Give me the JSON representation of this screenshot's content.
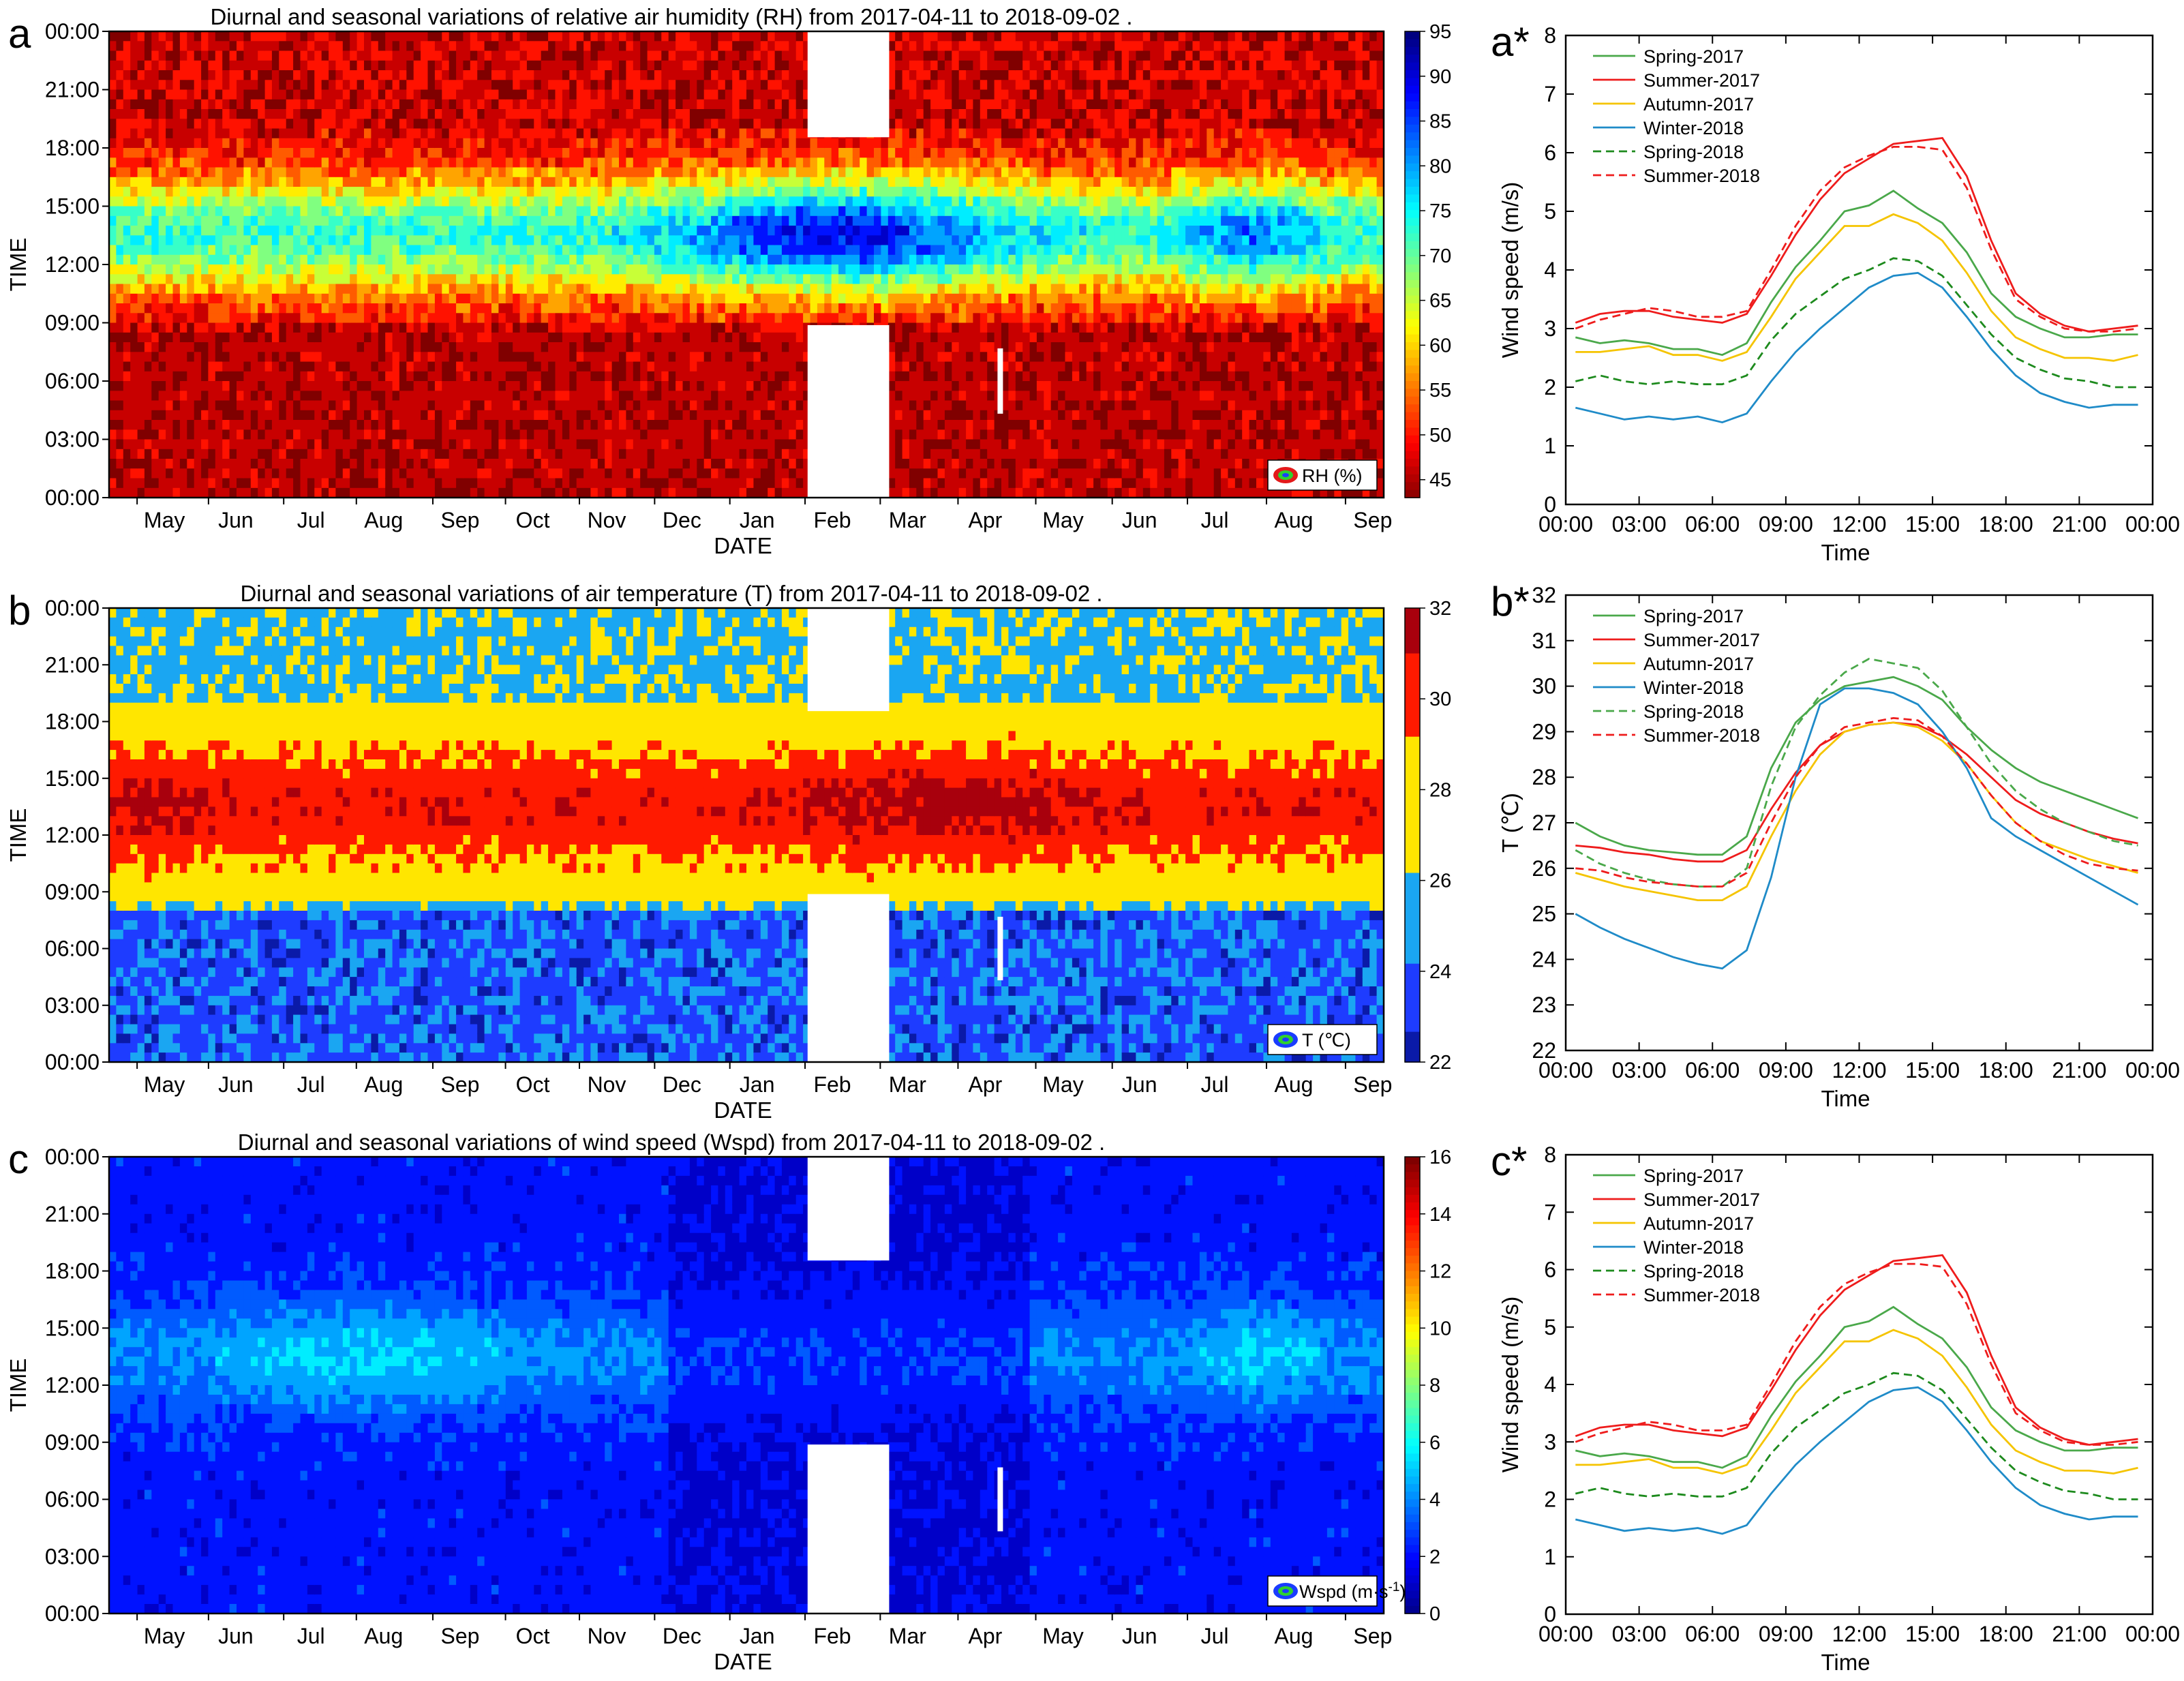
{
  "chart_data": [
    {
      "id": "a",
      "type": "heatmap",
      "panel_label": "a",
      "title": "Diurnal and seasonal variations of relative air humidity (RH) from 2017-04-11 to 2018-09-02 .",
      "xlabel": "DATE",
      "ylabel": "TIME",
      "x_ticks": [
        "May",
        "Jun",
        "Jul",
        "Aug",
        "Sep",
        "Oct",
        "Nov",
        "Dec",
        "Jan",
        "Feb",
        "Mar",
        "Apr",
        "May",
        "Jun",
        "Jul",
        "Aug",
        "Sep"
      ],
      "y_ticks": [
        "00:00",
        "03:00",
        "06:00",
        "09:00",
        "12:00",
        "15:00",
        "18:00",
        "21:00",
        "00:00"
      ],
      "colorbar": {
        "min": 43,
        "max": 95,
        "ticks": [
          45,
          50,
          55,
          60,
          65,
          70,
          75,
          80,
          85,
          90,
          95
        ],
        "scheme": "jet_reversed"
      },
      "legend": "RH (%)",
      "colors": [
        "#7f0000",
        "#ff0000",
        "#ff8c00",
        "#ffff00",
        "#7fff7f",
        "#00e5ee",
        "#00a2e8",
        "#0040ff",
        "#00008f"
      ]
    },
    {
      "id": "b",
      "type": "heatmap",
      "panel_label": "b",
      "title": "Diurnal and seasonal variations of air temperature (T) from 2017-04-11 to 2018-09-02 .",
      "xlabel": "DATE",
      "ylabel": "TIME",
      "x_ticks": [
        "May",
        "Jun",
        "Jul",
        "Aug",
        "Sep",
        "Oct",
        "Nov",
        "Dec",
        "Jan",
        "Feb",
        "Mar",
        "Apr",
        "May",
        "Jun",
        "Jul",
        "Aug",
        "Sep"
      ],
      "y_ticks": [
        "00:00",
        "03:00",
        "06:00",
        "09:00",
        "12:00",
        "15:00",
        "18:00",
        "21:00",
        "00:00"
      ],
      "colorbar": {
        "min": 22,
        "max": 32,
        "ticks": [
          22,
          24,
          26,
          28,
          30,
          32
        ],
        "scheme": "jet"
      },
      "legend": "T (℃)"
    },
    {
      "id": "c",
      "type": "heatmap",
      "panel_label": "c",
      "title": "Diurnal and seasonal variations of wind speed (Wspd) from 2017-04-11 to 2018-09-02 .",
      "xlabel": "DATE",
      "ylabel": "TIME",
      "x_ticks": [
        "May",
        "Jun",
        "Jul",
        "Aug",
        "Sep",
        "Oct",
        "Nov",
        "Dec",
        "Jan",
        "Feb",
        "Mar",
        "Apr",
        "May",
        "Jun",
        "Jul",
        "Aug",
        "Sep"
      ],
      "y_ticks": [
        "00:00",
        "03:00",
        "06:00",
        "09:00",
        "12:00",
        "15:00",
        "18:00",
        "21:00",
        "00:00"
      ],
      "colorbar": {
        "min": 0,
        "max": 16,
        "ticks": [
          0,
          2,
          4,
          6,
          8,
          10,
          12,
          14,
          16
        ],
        "scheme": "jet"
      },
      "legend": "Wspd (m·s-1)",
      "legend_main": "Wspd (m·s",
      "legend_sup": "-1",
      "legend_close": ")"
    },
    {
      "id": "a2",
      "type": "line",
      "panel_label": "a*",
      "xlabel": "Time",
      "ylabel": "Wind speed (m/s)",
      "ylim": [
        0,
        8
      ],
      "y_ticks": [
        0,
        1,
        2,
        3,
        4,
        5,
        6,
        7,
        8
      ],
      "x_ticks": [
        "00:00",
        "03:00",
        "06:00",
        "09:00",
        "12:00",
        "15:00",
        "18:00",
        "21:00",
        "00:00"
      ],
      "x": [
        0,
        1,
        2,
        3,
        4,
        5,
        6,
        7,
        8,
        9,
        10,
        11,
        12,
        13,
        14,
        15,
        16,
        17,
        18,
        19,
        20,
        21,
        22,
        23
      ],
      "series": [
        {
          "name": "Spring-2017",
          "color": "#4aa84a",
          "dash": false,
          "values": [
            2.85,
            2.75,
            2.8,
            2.75,
            2.65,
            2.65,
            2.55,
            2.75,
            3.45,
            4.05,
            4.5,
            5.0,
            5.1,
            5.35,
            5.05,
            4.8,
            4.3,
            3.6,
            3.2,
            3.0,
            2.85,
            2.85,
            2.9,
            2.9
          ]
        },
        {
          "name": "Summer-2017",
          "color": "#ee1c1c",
          "dash": false,
          "values": [
            3.1,
            3.25,
            3.3,
            3.3,
            3.2,
            3.15,
            3.1,
            3.25,
            3.9,
            4.6,
            5.2,
            5.65,
            5.9,
            6.15,
            6.2,
            6.25,
            5.6,
            4.5,
            3.6,
            3.25,
            3.05,
            2.95,
            3.0,
            3.05
          ]
        },
        {
          "name": "Autumn-2017",
          "color": "#f5c400",
          "dash": false,
          "values": [
            2.6,
            2.6,
            2.65,
            2.7,
            2.55,
            2.55,
            2.45,
            2.6,
            3.2,
            3.85,
            4.3,
            4.75,
            4.75,
            4.95,
            4.8,
            4.5,
            3.95,
            3.3,
            2.85,
            2.65,
            2.5,
            2.5,
            2.45,
            2.55
          ]
        },
        {
          "name": "Winter-2018",
          "color": "#1f8bc8",
          "dash": false,
          "values": [
            1.65,
            1.55,
            1.45,
            1.5,
            1.45,
            1.5,
            1.4,
            1.55,
            2.1,
            2.6,
            3.0,
            3.35,
            3.7,
            3.9,
            3.95,
            3.7,
            3.2,
            2.65,
            2.2,
            1.9,
            1.75,
            1.65,
            1.7,
            1.7
          ]
        },
        {
          "name": "Spring-2018",
          "color": "#1d8a1d",
          "dash": true,
          "values": [
            2.1,
            2.2,
            2.1,
            2.05,
            2.1,
            2.05,
            2.05,
            2.2,
            2.8,
            3.25,
            3.55,
            3.85,
            4.0,
            4.2,
            4.15,
            3.9,
            3.4,
            2.9,
            2.5,
            2.3,
            2.15,
            2.1,
            2.0,
            2.0
          ]
        },
        {
          "name": "Summer-2018",
          "color": "#ee1c1c",
          "dash": true,
          "values": [
            3.0,
            3.15,
            3.25,
            3.35,
            3.3,
            3.2,
            3.2,
            3.3,
            4.0,
            4.75,
            5.35,
            5.75,
            5.95,
            6.1,
            6.1,
            6.05,
            5.4,
            4.35,
            3.5,
            3.2,
            3.0,
            2.95,
            2.95,
            3.0
          ]
        }
      ]
    },
    {
      "id": "b2",
      "type": "line",
      "panel_label": "b*",
      "xlabel": "Time",
      "ylabel": "T (℃)",
      "ylim": [
        22,
        32
      ],
      "y_ticks": [
        22,
        23,
        24,
        25,
        26,
        27,
        28,
        29,
        30,
        31,
        32
      ],
      "x_ticks": [
        "00:00",
        "03:00",
        "06:00",
        "09:00",
        "12:00",
        "15:00",
        "18:00",
        "21:00",
        "00:00"
      ],
      "x": [
        0,
        1,
        2,
        3,
        4,
        5,
        6,
        7,
        8,
        9,
        10,
        11,
        12,
        13,
        14,
        15,
        16,
        17,
        18,
        19,
        20,
        21,
        22,
        23
      ],
      "series": [
        {
          "name": "Spring-2017",
          "color": "#4aa84a",
          "dash": false,
          "values": [
            27.0,
            26.7,
            26.5,
            26.4,
            26.35,
            26.3,
            26.3,
            26.7,
            28.2,
            29.2,
            29.7,
            30.0,
            30.1,
            30.2,
            30.0,
            29.7,
            29.1,
            28.6,
            28.2,
            27.9,
            27.7,
            27.5,
            27.3,
            27.1
          ]
        },
        {
          "name": "Summer-2017",
          "color": "#ee1c1c",
          "dash": false,
          "values": [
            26.5,
            26.45,
            26.35,
            26.3,
            26.2,
            26.15,
            26.15,
            26.4,
            27.3,
            28.1,
            28.7,
            29.0,
            29.15,
            29.2,
            29.15,
            28.9,
            28.5,
            28.0,
            27.5,
            27.2,
            27.0,
            26.8,
            26.65,
            26.55
          ]
        },
        {
          "name": "Autumn-2017",
          "color": "#f5c400",
          "dash": false,
          "values": [
            25.9,
            25.75,
            25.6,
            25.5,
            25.4,
            25.3,
            25.3,
            25.6,
            26.7,
            27.7,
            28.5,
            29.0,
            29.15,
            29.2,
            29.1,
            28.8,
            28.3,
            27.6,
            27.0,
            26.6,
            26.4,
            26.2,
            26.05,
            25.9
          ]
        },
        {
          "name": "Winter-2018",
          "color": "#1f8bc8",
          "dash": false,
          "values": [
            25.0,
            24.7,
            24.45,
            24.25,
            24.05,
            23.9,
            23.8,
            24.2,
            25.8,
            28.0,
            29.6,
            29.95,
            29.95,
            29.85,
            29.6,
            29.0,
            28.2,
            27.1,
            26.7,
            26.4,
            26.1,
            25.8,
            25.5,
            25.2
          ]
        },
        {
          "name": "Spring-2018",
          "color": "#4aa84a",
          "dash": true,
          "values": [
            26.4,
            26.1,
            25.9,
            25.75,
            25.65,
            25.6,
            25.6,
            26.0,
            27.8,
            29.1,
            29.8,
            30.3,
            30.6,
            30.5,
            30.4,
            29.9,
            29.1,
            28.3,
            27.7,
            27.3,
            27.0,
            26.8,
            26.6,
            26.5
          ]
        },
        {
          "name": "Summer-2018",
          "color": "#ee1c1c",
          "dash": true,
          "values": [
            26.0,
            25.95,
            25.8,
            25.7,
            25.65,
            25.6,
            25.6,
            25.9,
            27.0,
            28.0,
            28.7,
            29.1,
            29.2,
            29.3,
            29.25,
            28.9,
            28.3,
            27.6,
            27.0,
            26.6,
            26.3,
            26.1,
            26.0,
            25.95
          ]
        }
      ]
    },
    {
      "id": "c2",
      "type": "line",
      "panel_label": "c*",
      "xlabel": "Time",
      "ylabel": "Wind speed (m/s)",
      "ylim": [
        0,
        8
      ],
      "y_ticks": [
        0,
        1,
        2,
        3,
        4,
        5,
        6,
        7,
        8
      ],
      "x_ticks": [
        "00:00",
        "03:00",
        "06:00",
        "09:00",
        "12:00",
        "15:00",
        "18:00",
        "21:00",
        "00:00"
      ],
      "x": [
        0,
        1,
        2,
        3,
        4,
        5,
        6,
        7,
        8,
        9,
        10,
        11,
        12,
        13,
        14,
        15,
        16,
        17,
        18,
        19,
        20,
        21,
        22,
        23
      ],
      "series": [
        {
          "name": "Spring-2017",
          "color": "#4aa84a",
          "dash": false,
          "values": [
            2.85,
            2.75,
            2.8,
            2.75,
            2.65,
            2.65,
            2.55,
            2.75,
            3.45,
            4.05,
            4.5,
            5.0,
            5.1,
            5.35,
            5.05,
            4.8,
            4.3,
            3.6,
            3.2,
            3.0,
            2.85,
            2.85,
            2.9,
            2.9
          ]
        },
        {
          "name": "Summer-2017",
          "color": "#ee1c1c",
          "dash": false,
          "values": [
            3.1,
            3.25,
            3.3,
            3.3,
            3.2,
            3.15,
            3.1,
            3.25,
            3.9,
            4.6,
            5.2,
            5.65,
            5.9,
            6.15,
            6.2,
            6.25,
            5.6,
            4.5,
            3.6,
            3.25,
            3.05,
            2.95,
            3.0,
            3.05
          ]
        },
        {
          "name": "Autumn-2017",
          "color": "#f5c400",
          "dash": false,
          "values": [
            2.6,
            2.6,
            2.65,
            2.7,
            2.55,
            2.55,
            2.45,
            2.6,
            3.2,
            3.85,
            4.3,
            4.75,
            4.75,
            4.95,
            4.8,
            4.5,
            3.95,
            3.3,
            2.85,
            2.65,
            2.5,
            2.5,
            2.45,
            2.55
          ]
        },
        {
          "name": "Winter-2018",
          "color": "#1f8bc8",
          "dash": false,
          "values": [
            1.65,
            1.55,
            1.45,
            1.5,
            1.45,
            1.5,
            1.4,
            1.55,
            2.1,
            2.6,
            3.0,
            3.35,
            3.7,
            3.9,
            3.95,
            3.7,
            3.2,
            2.65,
            2.2,
            1.9,
            1.75,
            1.65,
            1.7,
            1.7
          ]
        },
        {
          "name": "Spring-2018",
          "color": "#1d8a1d",
          "dash": true,
          "values": [
            2.1,
            2.2,
            2.1,
            2.05,
            2.1,
            2.05,
            2.05,
            2.2,
            2.8,
            3.25,
            3.55,
            3.85,
            4.0,
            4.2,
            4.15,
            3.9,
            3.4,
            2.9,
            2.5,
            2.3,
            2.15,
            2.1,
            2.0,
            2.0
          ]
        },
        {
          "name": "Summer-2018",
          "color": "#ee1c1c",
          "dash": true,
          "values": [
            3.0,
            3.15,
            3.25,
            3.35,
            3.3,
            3.2,
            3.2,
            3.3,
            4.0,
            4.75,
            5.35,
            5.75,
            5.95,
            6.1,
            6.1,
            6.05,
            5.4,
            4.35,
            3.5,
            3.2,
            3.0,
            2.95,
            2.95,
            3.0
          ]
        }
      ]
    }
  ]
}
